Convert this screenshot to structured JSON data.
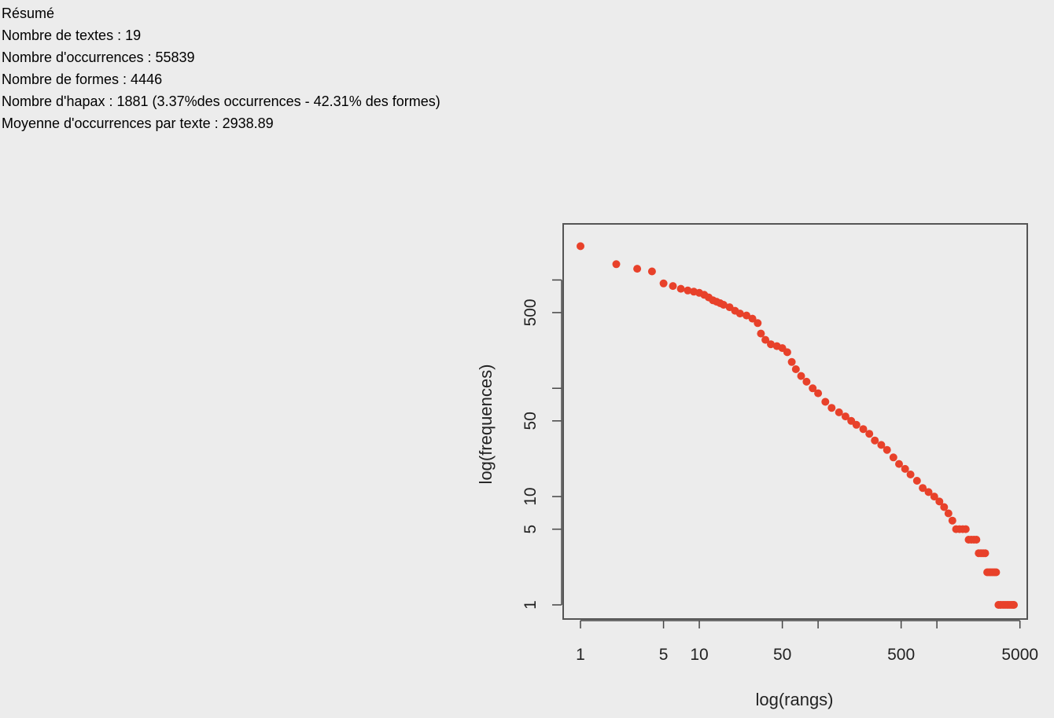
{
  "summary": {
    "title": "Résumé",
    "lines": [
      "Nombre de textes : 19",
      "Nombre d'occurrences : 55839",
      "Nombre de formes : 4446",
      "Nombre d'hapax : 1881 (3.37%des occurrences - 42.31% des formes)",
      "Moyenne d'occurrences par texte : 2938.89"
    ]
  },
  "chart_data": {
    "type": "scatter",
    "xlabel": "log(rangs)",
    "ylabel": "log(frequences)",
    "x_scale": "log",
    "y_scale": "log",
    "xlim": [
      1,
      4446
    ],
    "ylim": [
      1,
      2400
    ],
    "x_ticks": [
      1,
      5,
      10,
      50,
      100,
      500,
      1000,
      5000
    ],
    "x_tick_labels": [
      "1",
      "5",
      "10",
      "50",
      "",
      "500",
      "",
      "5000"
    ],
    "y_ticks": [
      1,
      5,
      10,
      50,
      100,
      500,
      1000
    ],
    "y_tick_labels": [
      "1",
      "5",
      "10",
      "50",
      "",
      "500",
      ""
    ],
    "point_color": "#e8412a",
    "points": [
      [
        1,
        2050
      ],
      [
        2,
        1400
      ],
      [
        3,
        1270
      ],
      [
        4,
        1200
      ],
      [
        5,
        930
      ],
      [
        6,
        880
      ],
      [
        7,
        830
      ],
      [
        8,
        800
      ],
      [
        9,
        780
      ],
      [
        10,
        760
      ],
      [
        11,
        730
      ],
      [
        12,
        690
      ],
      [
        13,
        650
      ],
      [
        14,
        630
      ],
      [
        15,
        610
      ],
      [
        16,
        590
      ],
      [
        18,
        560
      ],
      [
        20,
        520
      ],
      [
        22,
        490
      ],
      [
        25,
        470
      ],
      [
        28,
        440
      ],
      [
        31,
        400
      ],
      [
        33,
        320
      ],
      [
        36,
        280
      ],
      [
        40,
        255
      ],
      [
        45,
        245
      ],
      [
        50,
        235
      ],
      [
        55,
        215
      ],
      [
        60,
        175
      ],
      [
        65,
        150
      ],
      [
        72,
        130
      ],
      [
        80,
        115
      ],
      [
        90,
        100
      ],
      [
        100,
        90
      ],
      [
        115,
        75
      ],
      [
        130,
        66
      ],
      [
        150,
        60
      ],
      [
        170,
        55
      ],
      [
        190,
        50
      ],
      [
        210,
        46
      ],
      [
        240,
        42
      ],
      [
        270,
        38
      ],
      [
        300,
        33
      ],
      [
        340,
        30
      ],
      [
        380,
        27
      ],
      [
        430,
        23
      ],
      [
        480,
        20
      ],
      [
        540,
        18
      ],
      [
        600,
        16
      ],
      [
        680,
        14
      ],
      [
        760,
        12
      ],
      [
        850,
        11
      ],
      [
        950,
        10
      ],
      [
        1050,
        9
      ],
      [
        1150,
        8
      ],
      [
        1250,
        7
      ],
      [
        1350,
        6
      ],
      [
        1450,
        5
      ],
      [
        1550,
        5
      ],
      [
        1650,
        5
      ],
      [
        1750,
        5
      ],
      [
        1850,
        4
      ],
      [
        1950,
        4
      ],
      [
        2050,
        4
      ],
      [
        2150,
        4
      ],
      [
        2250,
        3
      ],
      [
        2350,
        3
      ],
      [
        2450,
        3
      ],
      [
        2550,
        3
      ],
      [
        2650,
        2
      ],
      [
        2750,
        2
      ],
      [
        2850,
        2
      ],
      [
        2950,
        2
      ],
      [
        3050,
        2
      ],
      [
        3150,
        2
      ],
      [
        3300,
        1
      ],
      [
        3450,
        1
      ],
      [
        3600,
        1
      ],
      [
        3750,
        1
      ],
      [
        3900,
        1
      ],
      [
        4050,
        1
      ],
      [
        4200,
        1
      ],
      [
        4350,
        1
      ],
      [
        4446,
        1
      ]
    ]
  }
}
